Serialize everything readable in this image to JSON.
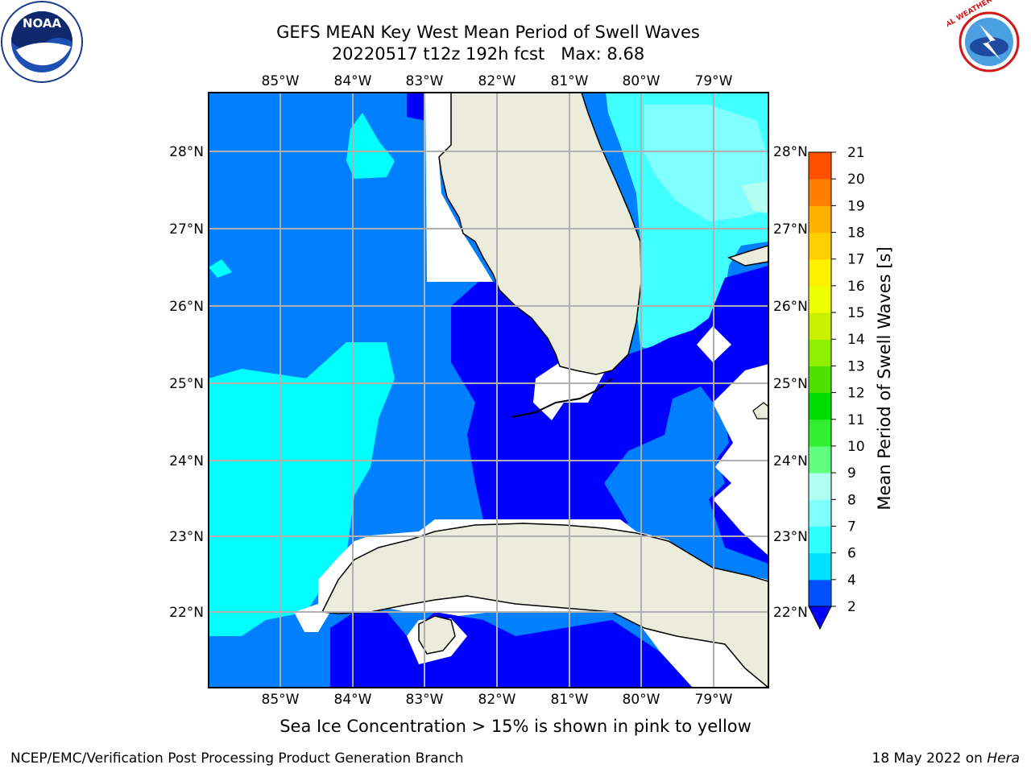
{
  "header": {
    "title_line1": "GEFS MEAN Key West Mean Period of Swell Waves",
    "run": "20220517 t12z 192h fcst",
    "max_label": "Max: 8.68"
  },
  "map": {
    "lon_ticks": [
      "85°W",
      "84°W",
      "83°W",
      "82°W",
      "81°W",
      "80°W",
      "79°W"
    ],
    "lat_ticks": [
      "28°N",
      "27°N",
      "26°N",
      "25°N",
      "24°N",
      "23°N",
      "22°N"
    ],
    "land_color": "#ececdc",
    "grid_color": "#b0b0b0"
  },
  "colorbar": {
    "title": "Mean Period of Swell Waves [s]",
    "levels": [
      "2",
      "4",
      "6",
      "7",
      "8",
      "9",
      "10",
      "11",
      "12",
      "13",
      "14",
      "15",
      "16",
      "17",
      "18",
      "19",
      "20",
      "21"
    ],
    "colors": [
      "#0050ff",
      "#00e0ff",
      "#30ffff",
      "#80ffff",
      "#b0fff0",
      "#60ff80",
      "#30ee30",
      "#00dd00",
      "#50e000",
      "#90ee00",
      "#c8f000",
      "#eeff00",
      "#fff000",
      "#ffd000",
      "#ffb000",
      "#ff8000",
      "#ff5000",
      "#ff2000",
      "#ff0000"
    ],
    "under_color": "#0000ff"
  },
  "caption": "Sea Ice Concentration > 15% is shown in pink to yellow",
  "footer": {
    "left": "NCEP/EMC/Verification Post Processing Product Generation Branch",
    "date": "18 May 2022 on",
    "host": "Hera"
  },
  "logos": {
    "noaa_text": "NOAA",
    "nws_text": "NATIONAL WEATHER SERVICE"
  }
}
